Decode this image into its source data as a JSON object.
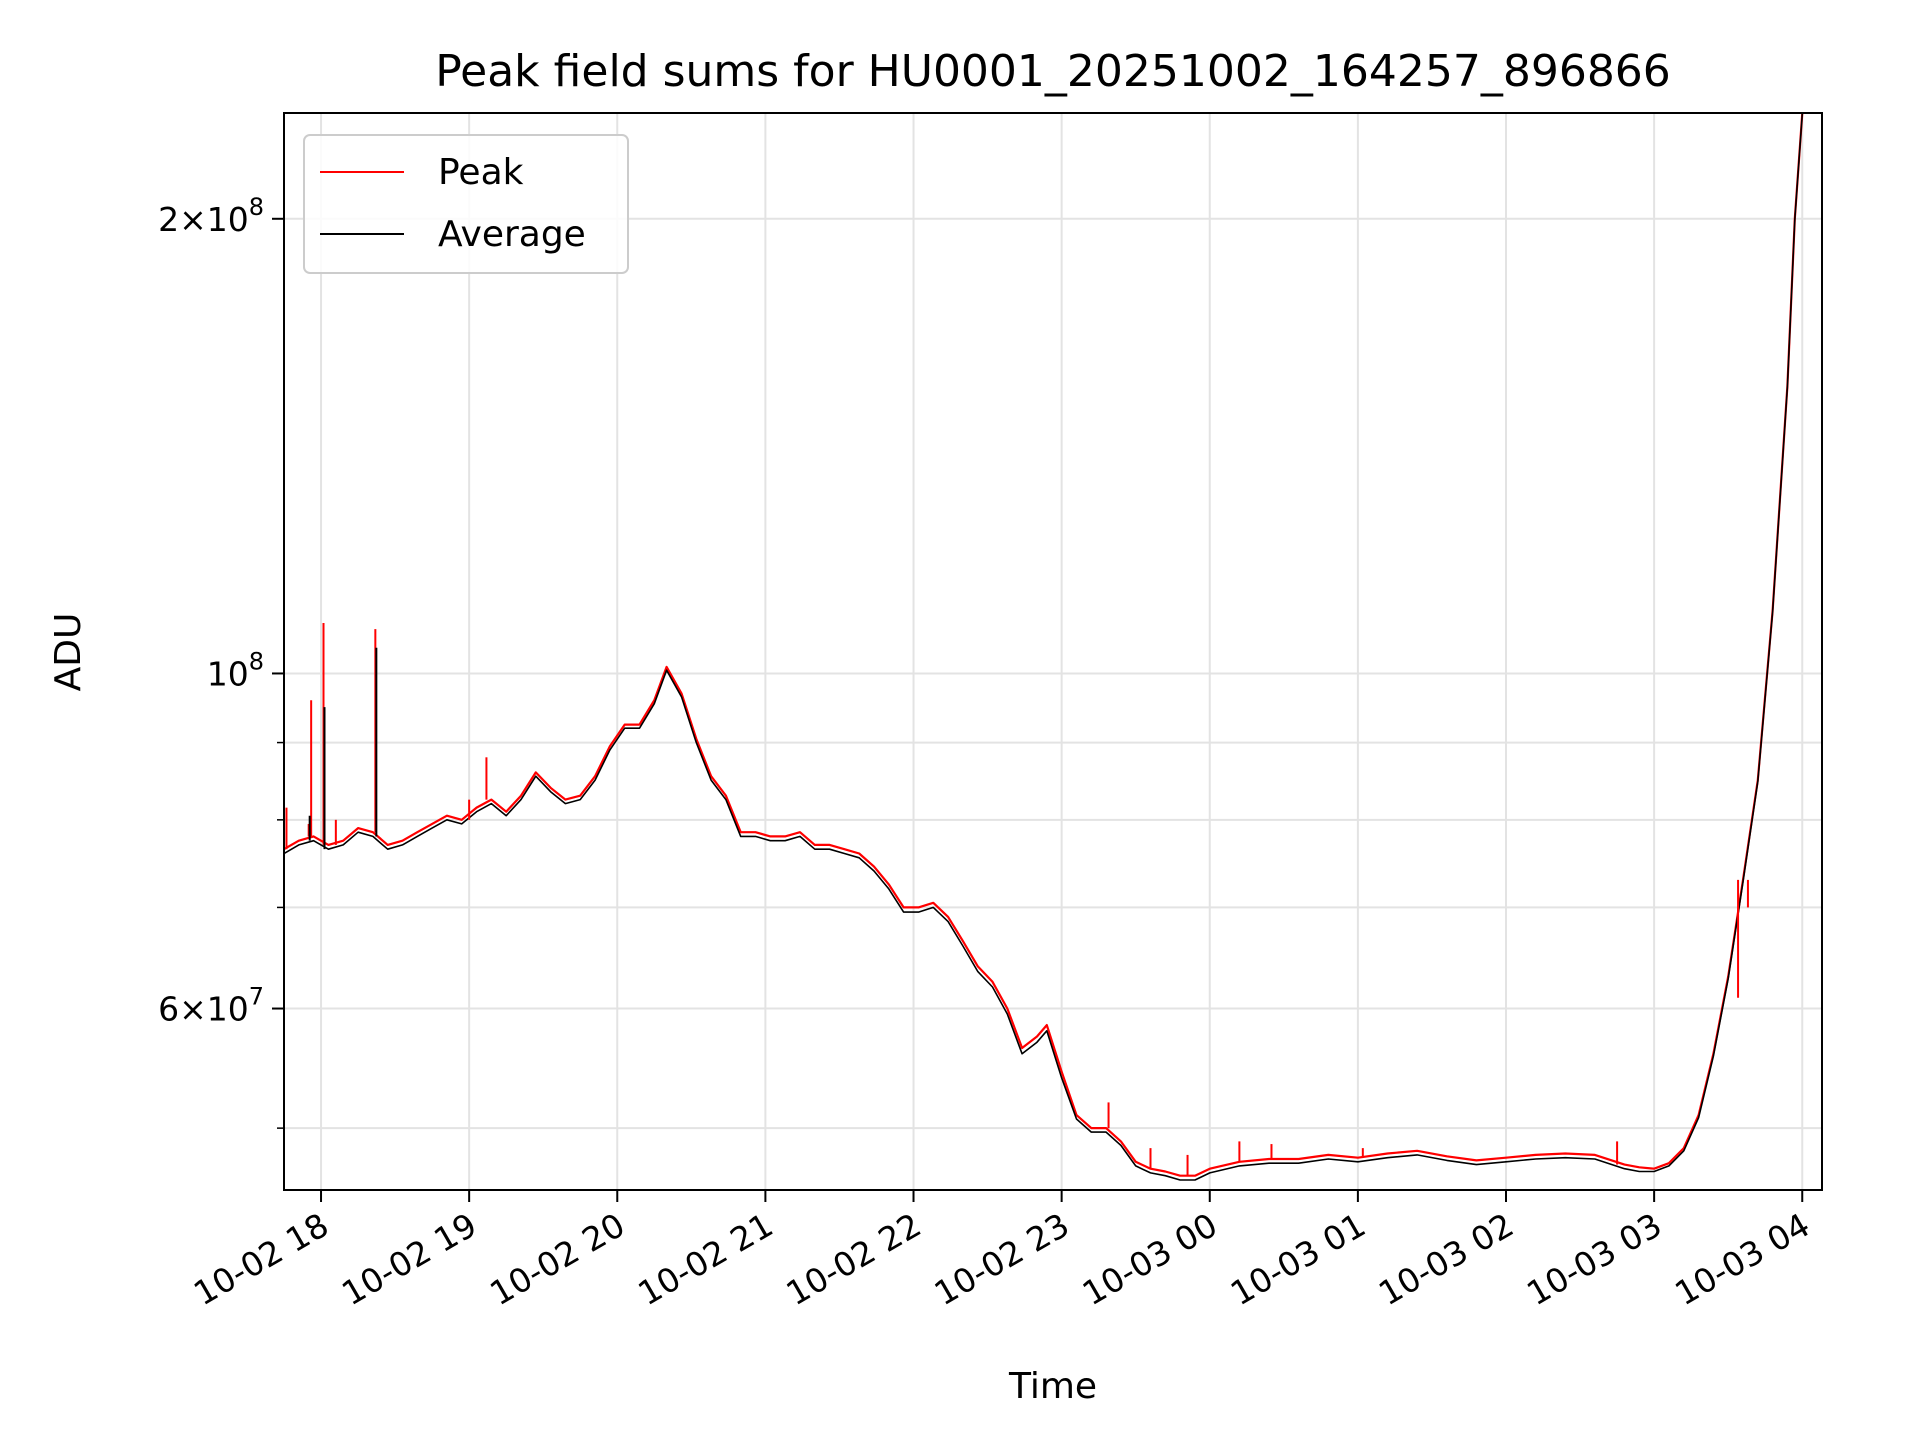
{
  "chart_data": {
    "type": "line",
    "title": "Peak field sums for HU0001_20251002_164257_896866",
    "xlabel": "Time",
    "ylabel": "ADU",
    "y_scale": "log",
    "ylim": [
      45500000,
      235000000
    ],
    "xlim": [
      "2025-10-02 17:45",
      "2025-10-03 04:08"
    ],
    "grid": true,
    "legend_position": "top-left",
    "x_ticks": [
      {
        "t": "2025-10-02 18:00",
        "label": "10-02 18"
      },
      {
        "t": "2025-10-02 19:00",
        "label": "10-02 19"
      },
      {
        "t": "2025-10-02 20:00",
        "label": "10-02 20"
      },
      {
        "t": "2025-10-02 21:00",
        "label": "10-02 21"
      },
      {
        "t": "2025-10-02 22:00",
        "label": "10-02 22"
      },
      {
        "t": "2025-10-02 23:00",
        "label": "10-02 23"
      },
      {
        "t": "2025-10-03 00:00",
        "label": "10-03 00"
      },
      {
        "t": "2025-10-03 01:00",
        "label": "10-03 01"
      },
      {
        "t": "2025-10-03 02:00",
        "label": "10-03 02"
      },
      {
        "t": "2025-10-03 03:00",
        "label": "10-03 03"
      },
      {
        "t": "2025-10-03 04:00",
        "label": "10-03 04"
      }
    ],
    "y_major_ticks": [
      {
        "value": 60000000,
        "mantissa": "6",
        "exponent": "7"
      },
      {
        "value": 100000000,
        "mantissa": "",
        "exponent": "8"
      },
      {
        "value": 200000000,
        "mantissa": "2",
        "exponent": "8"
      }
    ],
    "y_minor_ticks": [
      50000000,
      70000000,
      80000000,
      90000000
    ],
    "series": [
      {
        "name": "Peak",
        "color": "#ff0000",
        "points": [
          [
            "2025-10-02 17:45",
            76500000
          ],
          [
            "2025-10-02 17:51",
            77500000
          ],
          [
            "2025-10-02 17:57",
            78000000
          ],
          [
            "2025-10-02 18:03",
            77000000
          ],
          [
            "2025-10-02 18:09",
            77500000
          ],
          [
            "2025-10-02 18:15",
            79000000
          ],
          [
            "2025-10-02 18:21",
            78500000
          ],
          [
            "2025-10-02 18:27",
            77000000
          ],
          [
            "2025-10-02 18:33",
            77500000
          ],
          [
            "2025-10-02 18:39",
            78500000
          ],
          [
            "2025-10-02 18:45",
            79500000
          ],
          [
            "2025-10-02 18:51",
            80500000
          ],
          [
            "2025-10-02 18:57",
            80000000
          ],
          [
            "2025-10-02 19:03",
            81500000
          ],
          [
            "2025-10-02 19:09",
            82500000
          ],
          [
            "2025-10-02 19:15",
            81000000
          ],
          [
            "2025-10-02 19:21",
            83000000
          ],
          [
            "2025-10-02 19:27",
            86000000
          ],
          [
            "2025-10-02 19:33",
            84000000
          ],
          [
            "2025-10-02 19:39",
            82500000
          ],
          [
            "2025-10-02 19:45",
            83000000
          ],
          [
            "2025-10-02 19:51",
            85500000
          ],
          [
            "2025-10-02 19:57",
            89500000
          ],
          [
            "2025-10-02 20:03",
            92500000
          ],
          [
            "2025-10-02 20:09",
            92500000
          ],
          [
            "2025-10-02 20:15",
            96000000
          ],
          [
            "2025-10-02 20:20",
            101000000
          ],
          [
            "2025-10-02 20:26",
            97000000
          ],
          [
            "2025-10-02 20:32",
            90500000
          ],
          [
            "2025-10-02 20:38",
            85500000
          ],
          [
            "2025-10-02 20:44",
            83000000
          ],
          [
            "2025-10-02 20:50",
            78500000
          ],
          [
            "2025-10-02 20:56",
            78500000
          ],
          [
            "2025-10-02 21:02",
            78000000
          ],
          [
            "2025-10-02 21:08",
            78000000
          ],
          [
            "2025-10-02 21:14",
            78500000
          ],
          [
            "2025-10-02 21:20",
            77000000
          ],
          [
            "2025-10-02 21:26",
            77000000
          ],
          [
            "2025-10-02 21:32",
            76500000
          ],
          [
            "2025-10-02 21:38",
            76000000
          ],
          [
            "2025-10-02 21:44",
            74500000
          ],
          [
            "2025-10-02 21:50",
            72500000
          ],
          [
            "2025-10-02 21:56",
            70000000
          ],
          [
            "2025-10-02 22:02",
            70000000
          ],
          [
            "2025-10-02 22:08",
            70500000
          ],
          [
            "2025-10-02 22:14",
            69000000
          ],
          [
            "2025-10-02 22:20",
            66500000
          ],
          [
            "2025-10-02 22:26",
            64000000
          ],
          [
            "2025-10-02 22:32",
            62500000
          ],
          [
            "2025-10-02 22:38",
            60000000
          ],
          [
            "2025-10-02 22:44",
            56500000
          ],
          [
            "2025-10-02 22:50",
            57500000
          ],
          [
            "2025-10-02 22:54",
            58500000
          ],
          [
            "2025-10-02 23:00",
            54500000
          ],
          [
            "2025-10-02 23:06",
            51000000
          ],
          [
            "2025-10-02 23:12",
            50000000
          ],
          [
            "2025-10-02 23:18",
            50000000
          ],
          [
            "2025-10-02 23:24",
            49000000
          ],
          [
            "2025-10-02 23:30",
            47500000
          ],
          [
            "2025-10-02 23:36",
            47000000
          ],
          [
            "2025-10-02 23:42",
            46800000
          ],
          [
            "2025-10-02 23:48",
            46500000
          ],
          [
            "2025-10-02 23:54",
            46500000
          ],
          [
            "2025-10-03 00:00",
            47000000
          ],
          [
            "2025-10-03 00:12",
            47500000
          ],
          [
            "2025-10-03 00:24",
            47700000
          ],
          [
            "2025-10-03 00:36",
            47700000
          ],
          [
            "2025-10-03 00:48",
            48000000
          ],
          [
            "2025-10-03 01:00",
            47800000
          ],
          [
            "2025-10-03 01:12",
            48100000
          ],
          [
            "2025-10-03 01:24",
            48300000
          ],
          [
            "2025-10-03 01:36",
            47900000
          ],
          [
            "2025-10-03 01:48",
            47600000
          ],
          [
            "2025-10-03 02:00",
            47800000
          ],
          [
            "2025-10-03 02:12",
            48000000
          ],
          [
            "2025-10-03 02:24",
            48100000
          ],
          [
            "2025-10-03 02:36",
            48000000
          ],
          [
            "2025-10-03 02:48",
            47300000
          ],
          [
            "2025-10-03 02:54",
            47100000
          ],
          [
            "2025-10-03 03:00",
            47000000
          ],
          [
            "2025-10-03 03:06",
            47400000
          ],
          [
            "2025-10-03 03:12",
            48500000
          ],
          [
            "2025-10-03 03:18",
            51000000
          ],
          [
            "2025-10-03 03:24",
            56000000
          ],
          [
            "2025-10-03 03:30",
            63000000
          ],
          [
            "2025-10-03 03:36",
            73000000
          ],
          [
            "2025-10-03 03:42",
            85000000
          ],
          [
            "2025-10-03 03:48",
            110000000
          ],
          [
            "2025-10-03 03:54",
            155000000
          ],
          [
            "2025-10-03 03:57",
            200000000
          ],
          [
            "2025-10-03 04:00",
            235000000
          ]
        ]
      },
      {
        "name": "Average",
        "color": "#000000",
        "points": [
          [
            "2025-10-02 17:45",
            76000000
          ],
          [
            "2025-10-02 17:51",
            77000000
          ],
          [
            "2025-10-02 17:57",
            77500000
          ],
          [
            "2025-10-02 18:03",
            76500000
          ],
          [
            "2025-10-02 18:09",
            77000000
          ],
          [
            "2025-10-02 18:15",
            78500000
          ],
          [
            "2025-10-02 18:21",
            78000000
          ],
          [
            "2025-10-02 18:27",
            76500000
          ],
          [
            "2025-10-02 18:33",
            77000000
          ],
          [
            "2025-10-02 18:39",
            78000000
          ],
          [
            "2025-10-02 18:45",
            79000000
          ],
          [
            "2025-10-02 18:51",
            80000000
          ],
          [
            "2025-10-02 18:57",
            79500000
          ],
          [
            "2025-10-02 19:03",
            81000000
          ],
          [
            "2025-10-02 19:09",
            82000000
          ],
          [
            "2025-10-02 19:15",
            80500000
          ],
          [
            "2025-10-02 19:21",
            82500000
          ],
          [
            "2025-10-02 19:27",
            85500000
          ],
          [
            "2025-10-02 19:33",
            83500000
          ],
          [
            "2025-10-02 19:39",
            82000000
          ],
          [
            "2025-10-02 19:45",
            82500000
          ],
          [
            "2025-10-02 19:51",
            85000000
          ],
          [
            "2025-10-02 19:57",
            89000000
          ],
          [
            "2025-10-02 20:03",
            92000000
          ],
          [
            "2025-10-02 20:09",
            92000000
          ],
          [
            "2025-10-02 20:15",
            95500000
          ],
          [
            "2025-10-02 20:20",
            100500000
          ],
          [
            "2025-10-02 20:26",
            96500000
          ],
          [
            "2025-10-02 20:32",
            90000000
          ],
          [
            "2025-10-02 20:38",
            85000000
          ],
          [
            "2025-10-02 20:44",
            82500000
          ],
          [
            "2025-10-02 20:50",
            78000000
          ],
          [
            "2025-10-02 20:56",
            78000000
          ],
          [
            "2025-10-02 21:02",
            77500000
          ],
          [
            "2025-10-02 21:08",
            77500000
          ],
          [
            "2025-10-02 21:14",
            78000000
          ],
          [
            "2025-10-02 21:20",
            76500000
          ],
          [
            "2025-10-02 21:26",
            76500000
          ],
          [
            "2025-10-02 21:32",
            76000000
          ],
          [
            "2025-10-02 21:38",
            75500000
          ],
          [
            "2025-10-02 21:44",
            74000000
          ],
          [
            "2025-10-02 21:50",
            72000000
          ],
          [
            "2025-10-02 21:56",
            69500000
          ],
          [
            "2025-10-02 22:02",
            69500000
          ],
          [
            "2025-10-02 22:08",
            70000000
          ],
          [
            "2025-10-02 22:14",
            68500000
          ],
          [
            "2025-10-02 22:20",
            66000000
          ],
          [
            "2025-10-02 22:26",
            63500000
          ],
          [
            "2025-10-02 22:32",
            62000000
          ],
          [
            "2025-10-02 22:38",
            59500000
          ],
          [
            "2025-10-02 22:44",
            56000000
          ],
          [
            "2025-10-02 22:50",
            57000000
          ],
          [
            "2025-10-02 22:54",
            58000000
          ],
          [
            "2025-10-02 23:00",
            54000000
          ],
          [
            "2025-10-02 23:06",
            50700000
          ],
          [
            "2025-10-02 23:12",
            49700000
          ],
          [
            "2025-10-02 23:18",
            49700000
          ],
          [
            "2025-10-02 23:24",
            48700000
          ],
          [
            "2025-10-02 23:30",
            47200000
          ],
          [
            "2025-10-02 23:36",
            46700000
          ],
          [
            "2025-10-02 23:42",
            46500000
          ],
          [
            "2025-10-02 23:48",
            46200000
          ],
          [
            "2025-10-02 23:54",
            46200000
          ],
          [
            "2025-10-03 00:00",
            46700000
          ],
          [
            "2025-10-03 00:12",
            47200000
          ],
          [
            "2025-10-03 00:24",
            47400000
          ],
          [
            "2025-10-03 00:36",
            47400000
          ],
          [
            "2025-10-03 00:48",
            47700000
          ],
          [
            "2025-10-03 01:00",
            47500000
          ],
          [
            "2025-10-03 01:12",
            47800000
          ],
          [
            "2025-10-03 01:24",
            48000000
          ],
          [
            "2025-10-03 01:36",
            47600000
          ],
          [
            "2025-10-03 01:48",
            47300000
          ],
          [
            "2025-10-03 02:00",
            47500000
          ],
          [
            "2025-10-03 02:12",
            47700000
          ],
          [
            "2025-10-03 02:24",
            47800000
          ],
          [
            "2025-10-03 02:36",
            47700000
          ],
          [
            "2025-10-03 02:48",
            47000000
          ],
          [
            "2025-10-03 02:54",
            46800000
          ],
          [
            "2025-10-03 03:00",
            46800000
          ],
          [
            "2025-10-03 03:06",
            47200000
          ],
          [
            "2025-10-03 03:12",
            48300000
          ],
          [
            "2025-10-03 03:18",
            50800000
          ],
          [
            "2025-10-03 03:24",
            55800000
          ],
          [
            "2025-10-03 03:30",
            62800000
          ],
          [
            "2025-10-03 03:36",
            72800000
          ],
          [
            "2025-10-03 03:42",
            84800000
          ],
          [
            "2025-10-03 03:48",
            109800000
          ],
          [
            "2025-10-03 03:54",
            154800000
          ],
          [
            "2025-10-03 03:57",
            199800000
          ],
          [
            "2025-10-03 04:00",
            234800000
          ]
        ]
      }
    ],
    "peak_spikes": [
      [
        "2025-10-02 17:46",
        81500000
      ],
      [
        "2025-10-02 17:55",
        79500000
      ],
      [
        "2025-10-02 17:56",
        96000000
      ],
      [
        "2025-10-02 18:01",
        108000000
      ],
      [
        "2025-10-02 18:06",
        80000000
      ],
      [
        "2025-10-02 18:22",
        107000000
      ],
      [
        "2025-10-02 19:00",
        82500000
      ],
      [
        "2025-10-02 19:07",
        88000000
      ],
      [
        "2025-10-02 23:19",
        52000000
      ],
      [
        "2025-10-02 23:36",
        48500000
      ],
      [
        "2025-10-02 23:51",
        48000000
      ],
      [
        "2025-10-03 00:12",
        49000000
      ],
      [
        "2025-10-03 00:25",
        48800000
      ],
      [
        "2025-10-03 01:02",
        48500000
      ],
      [
        "2025-10-03 02:45",
        49000000
      ],
      [
        "2025-10-03 03:34",
        61000000
      ],
      [
        "2025-10-03 03:38",
        70000000
      ]
    ],
    "average_spikes": [
      [
        "2025-10-02 18:01",
        95000000
      ],
      [
        "2025-10-02 18:22",
        104000000
      ],
      [
        "2025-10-02 17:55",
        80500000
      ]
    ]
  }
}
